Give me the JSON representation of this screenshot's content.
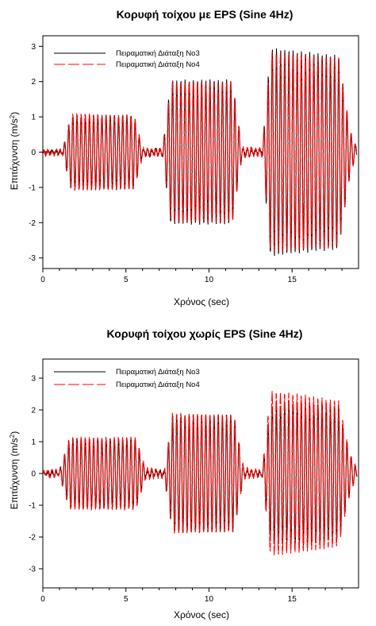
{
  "chart_data": [
    {
      "type": "line",
      "title": "Κορυφή τοίχου με EPS (Sine 4Hz)",
      "xlabel": "Χρόνος (sec)",
      "ylabel_main": "Επιτάχυνση (m/s",
      "ylabel_sup": "2",
      "ylabel_close": ")",
      "xlim": [
        0,
        19
      ],
      "ylim": [
        -3.3,
        3.3
      ],
      "xticks": [
        0,
        5,
        10,
        15
      ],
      "yticks": [
        -3,
        -2,
        -1,
        0,
        1,
        2,
        3
      ],
      "legend_position": "top-left",
      "series": [
        {
          "name": "Πειραματική Διάταξη Νο3",
          "color": "#000000",
          "dash": "solid",
          "envelope": [
            {
              "t": 0.0,
              "a": 0.04
            },
            {
              "t": 1.2,
              "a": 0.06
            },
            {
              "t": 1.7,
              "a": 1.05
            },
            {
              "t": 5.5,
              "a": 1.05
            },
            {
              "t": 6.0,
              "a": 0.1
            },
            {
              "t": 7.2,
              "a": 0.06
            },
            {
              "t": 7.7,
              "a": 2.05
            },
            {
              "t": 11.4,
              "a": 2.05
            },
            {
              "t": 12.0,
              "a": 0.1
            },
            {
              "t": 13.2,
              "a": 0.06
            },
            {
              "t": 13.7,
              "a": 2.95
            },
            {
              "t": 17.8,
              "a": 2.75
            },
            {
              "t": 18.5,
              "a": 0.6
            },
            {
              "t": 18.9,
              "a": 0.1
            }
          ]
        },
        {
          "name": "Πειραματική Διάταξη Νο4",
          "color": "#ff0000",
          "dash": "long-dash",
          "envelope": [
            {
              "t": 0.0,
              "a": 0.06
            },
            {
              "t": 1.2,
              "a": 0.08
            },
            {
              "t": 1.7,
              "a": 1.1
            },
            {
              "t": 5.5,
              "a": 1.05
            },
            {
              "t": 6.0,
              "a": 0.12
            },
            {
              "t": 7.2,
              "a": 0.08
            },
            {
              "t": 7.7,
              "a": 2.0
            },
            {
              "t": 11.4,
              "a": 2.0
            },
            {
              "t": 12.0,
              "a": 0.12
            },
            {
              "t": 13.2,
              "a": 0.08
            },
            {
              "t": 13.7,
              "a": 2.85
            },
            {
              "t": 17.8,
              "a": 2.7
            },
            {
              "t": 18.5,
              "a": 0.6
            },
            {
              "t": 18.9,
              "a": 0.12
            }
          ]
        }
      ]
    },
    {
      "type": "line",
      "title": "Κορυφή τοίχου χωρίς EPS (Sine 4Hz)",
      "xlabel": "Χρόνος (sec)",
      "ylabel_main": "Επιτάχυνση (m/s",
      "ylabel_sup": "2",
      "ylabel_close": ")",
      "xlim": [
        0,
        19
      ],
      "ylim": [
        -3.6,
        3.6
      ],
      "xticks": [
        0,
        5,
        10,
        15
      ],
      "yticks": [
        -3,
        -2,
        -1,
        0,
        1,
        2,
        3
      ],
      "legend_position": "top-left",
      "series": [
        {
          "name": "Πειραματική Διάταξη Νο3",
          "color": "#000000",
          "dash": "solid",
          "envelope": [
            {
              "t": 0.0,
              "a": 0.04
            },
            {
              "t": 1.0,
              "a": 0.06
            },
            {
              "t": 1.6,
              "a": 1.1
            },
            {
              "t": 5.6,
              "a": 1.1
            },
            {
              "t": 6.2,
              "a": 0.1
            },
            {
              "t": 7.3,
              "a": 0.06
            },
            {
              "t": 7.8,
              "a": 1.85
            },
            {
              "t": 11.5,
              "a": 1.85
            },
            {
              "t": 12.1,
              "a": 0.1
            },
            {
              "t": 13.2,
              "a": 0.06
            },
            {
              "t": 13.7,
              "a": 2.1
            },
            {
              "t": 15.5,
              "a": 2.3
            },
            {
              "t": 17.8,
              "a": 2.1
            },
            {
              "t": 18.5,
              "a": 0.6
            },
            {
              "t": 18.9,
              "a": 0.1
            }
          ]
        },
        {
          "name": "Πειραματική Διάταξη Νο4",
          "color": "#ff0000",
          "dash": "long-dash",
          "envelope": [
            {
              "t": 0.0,
              "a": 0.08
            },
            {
              "t": 1.0,
              "a": 0.1
            },
            {
              "t": 1.6,
              "a": 1.15
            },
            {
              "t": 5.6,
              "a": 1.15
            },
            {
              "t": 6.2,
              "a": 0.15
            },
            {
              "t": 7.3,
              "a": 0.1
            },
            {
              "t": 7.8,
              "a": 1.9
            },
            {
              "t": 11.5,
              "a": 1.85
            },
            {
              "t": 12.1,
              "a": 0.15
            },
            {
              "t": 13.2,
              "a": 0.1
            },
            {
              "t": 13.7,
              "a": 2.6
            },
            {
              "t": 15.5,
              "a": 2.5
            },
            {
              "t": 17.8,
              "a": 2.3
            },
            {
              "t": 18.5,
              "a": 0.6
            },
            {
              "t": 18.9,
              "a": 0.15
            }
          ]
        }
      ]
    }
  ]
}
